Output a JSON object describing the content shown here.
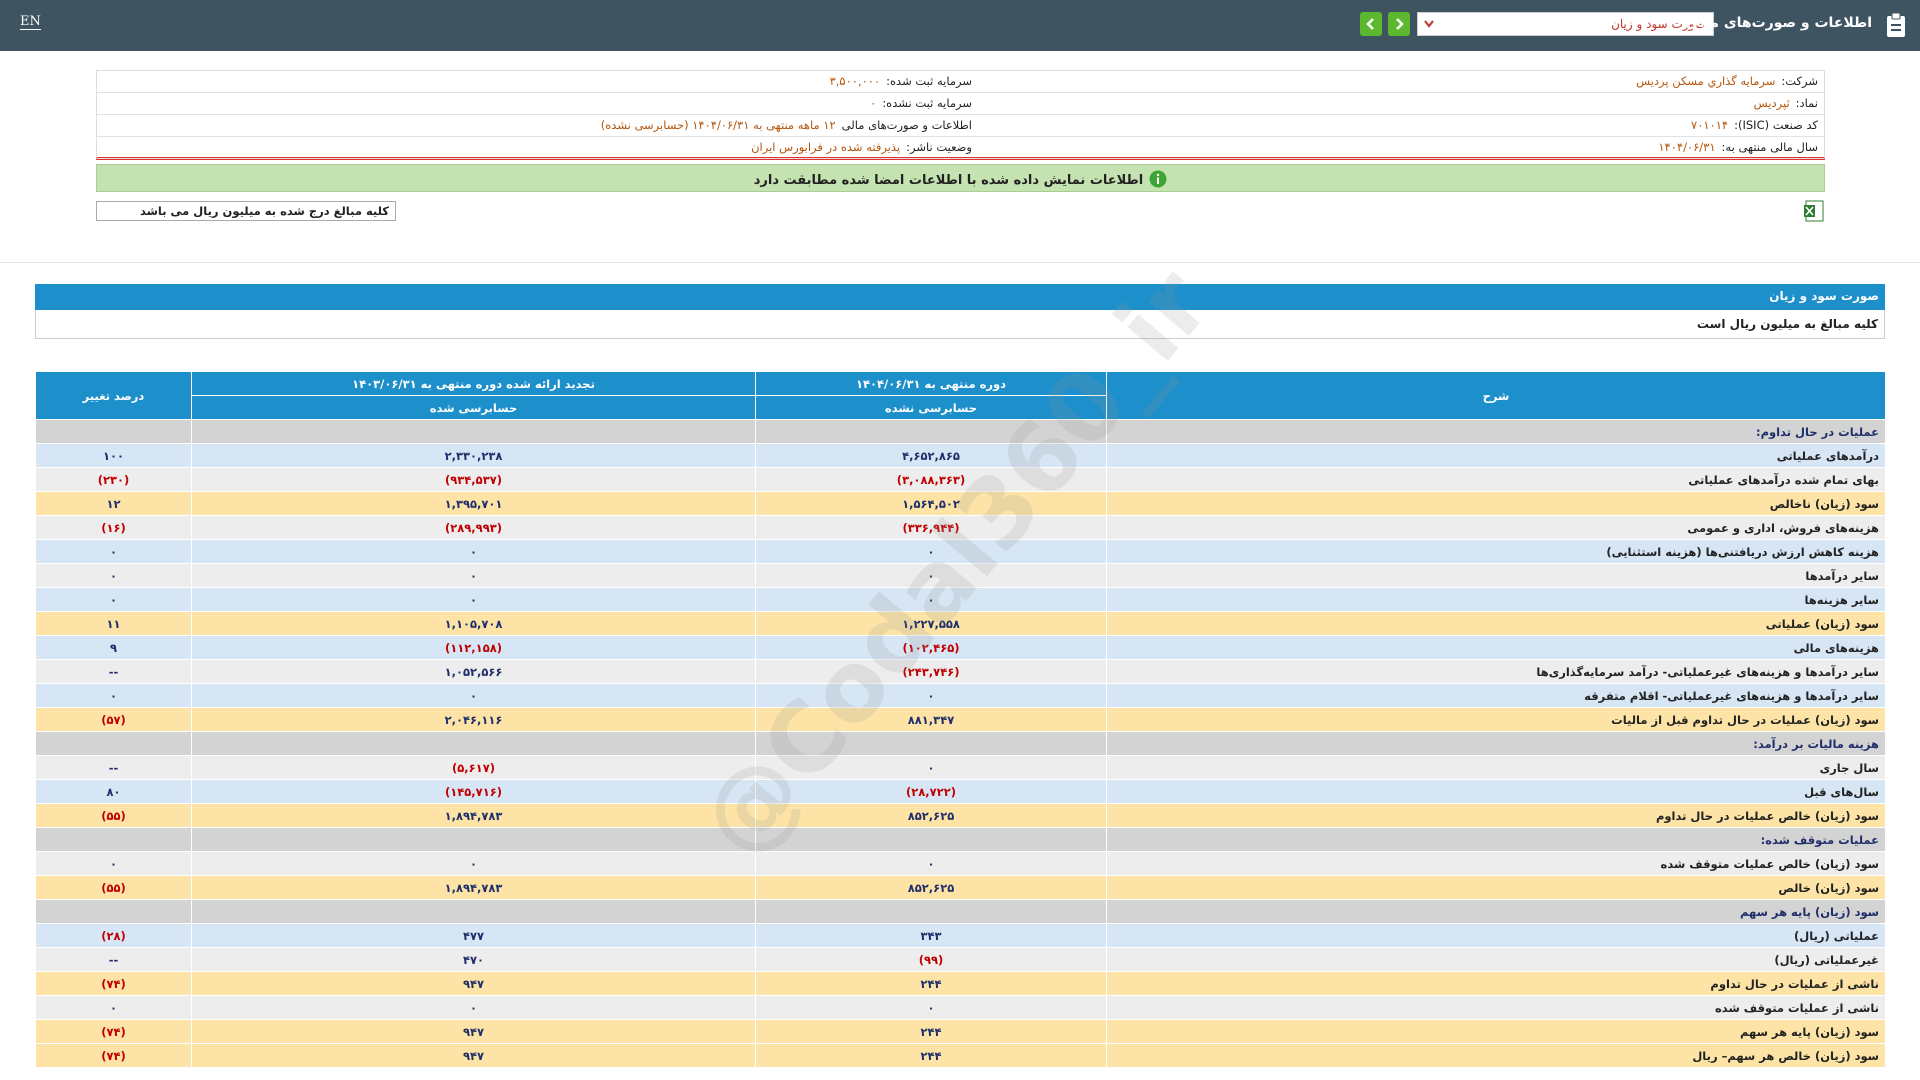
{
  "header": {
    "lang": "EN",
    "title": "اطلاعات و صورت‌های مالی",
    "report_select": "صورت سود و زیان"
  },
  "company_info": [
    {
      "label": "شرکت:",
      "value": "سرمايه گذاري مسکن پرديس"
    },
    {
      "label": "سرمایه ثبت شده:",
      "value": "۳,۵۰۰,۰۰۰"
    },
    {
      "label": "نماد:",
      "value": "ثپردیس"
    },
    {
      "label": "سرمایه ثبت نشده:",
      "value": "۰"
    },
    {
      "label": "کد صنعت (ISIC):",
      "value": "۷۰۱۰۱۴"
    },
    {
      "label": "اطلاعات و صورت‌های مالی",
      "value": "۱۲ ماهه منتهی به ۱۴۰۴/۰۶/۳۱ (حسابرسی نشده)"
    },
    {
      "label": "سال مالی منتهی به:",
      "value": "۱۴۰۴/۰۶/۳۱"
    },
    {
      "label": "وضعیت ناشر:",
      "value": "پذیرفته شده در فرابورس ایران"
    }
  ],
  "verification_notice": "اطلاعات نمایش داده شده با اطلاعات امضا شده مطابقت دارد",
  "units_note": "کلیه مبالغ درج شده به میلیون ریال می باشد",
  "statement": {
    "title": "صورت سود و زیان",
    "units_note": "کلیه مبالغ به میلیون ریال است",
    "columns": [
      "شرح",
      "دوره منتهی به ۱۴۰۴/۰۶/۳۱",
      "تجدید ارائه شده دوره منتهی به ۱۴۰۳/۰۶/۳۱",
      "درصد تغییر"
    ],
    "audit_status": [
      "حسابرسی نشده",
      "حسابرسی شده"
    ],
    "rows": [
      {
        "label": "عملیات در حال تداوم:",
        "color": "#d3d3d3"
      },
      {
        "label": "درآمدهای عملیاتی",
        "values": [
          "۴,۶۵۲,۸۶۵",
          "۲,۳۳۰,۲۳۸",
          "۱۰۰"
        ],
        "color": "#d6e6f5"
      },
      {
        "label": "بهای تمام شده درآمدهای عملیاتی",
        "values": [
          "(۳,۰۸۸,۳۶۳)",
          "(۹۳۴,۵۳۷)",
          "(۲۳۰)"
        ],
        "color": "#ededed"
      },
      {
        "label": "سود (زیان) ناخالص",
        "values": [
          "۱,۵۶۴,۵۰۲",
          "۱,۳۹۵,۷۰۱",
          "۱۲"
        ],
        "color": "#fde4a6"
      },
      {
        "label": "هزینه‌های فروش، اداری و عمومی",
        "values": [
          "(۳۳۶,۹۴۴)",
          "(۲۸۹,۹۹۳)",
          "(۱۶)"
        ],
        "color": "#ededed"
      },
      {
        "label": "هزینه کاهش ارزش دریافتنی‌ها (هزینه استثنایی)",
        "values": [
          "۰",
          "۰",
          "۰"
        ],
        "color": "#d6e6f5"
      },
      {
        "label": "سایر درآمدها",
        "values": [
          "۰",
          "۰",
          "۰"
        ],
        "color": "#ededed"
      },
      {
        "label": "سایر هزینه‌ها",
        "values": [
          "۰",
          "۰",
          "۰"
        ],
        "color": "#d6e6f5"
      },
      {
        "label": "سود (زیان) عملیاتی",
        "values": [
          "۱,۲۲۷,۵۵۸",
          "۱,۱۰۵,۷۰۸",
          "۱۱"
        ],
        "color": "#fde4a6"
      },
      {
        "label": "هزینه‌های مالی",
        "values": [
          "(۱۰۲,۴۶۵)",
          "(۱۱۲,۱۵۸)",
          "۹"
        ],
        "color": "#d6e6f5"
      },
      {
        "label": "سایر درآمدها و هزینه‌های غیرعملیاتی- درآمد سرمایه‌گذاری‌ها",
        "values": [
          "(۲۴۳,۷۴۶)",
          "۱,۰۵۲,۵۶۶",
          "--"
        ],
        "color": "#ededed"
      },
      {
        "label": "سایر درآمدها و هزینه‌های غیرعملیاتی- اقلام متفرقه",
        "values": [
          "۰",
          "۰",
          "۰"
        ],
        "color": "#d6e6f5"
      },
      {
        "label": "سود (زیان) عملیات در حال تداوم قبل از مالیات",
        "values": [
          "۸۸۱,۳۴۷",
          "۲,۰۴۶,۱۱۶",
          "(۵۷)"
        ],
        "color": "#fde4a6"
      },
      {
        "label": "هزینه مالیات بر درآمد:",
        "color": "#d3d3d3"
      },
      {
        "label": "سال جاری",
        "values": [
          "۰",
          "(۵,۶۱۷)",
          "--"
        ],
        "color": "#ededed"
      },
      {
        "label": "سال‌های قبل",
        "values": [
          "(۲۸,۷۲۲)",
          "(۱۴۵,۷۱۶)",
          "۸۰"
        ],
        "color": "#d6e6f5"
      },
      {
        "label": "سود (زیان) خالص عملیات در حال تداوم",
        "values": [
          "۸۵۲,۶۲۵",
          "۱,۸۹۴,۷۸۳",
          "(۵۵)"
        ],
        "color": "#fde4a6"
      },
      {
        "label": "عملیات متوقف شده:",
        "color": "#d3d3d3"
      },
      {
        "label": "سود (زیان) خالص عملیات متوقف شده",
        "values": [
          "۰",
          "۰",
          "۰"
        ],
        "color": "#ededed"
      },
      {
        "label": "سود (زیان) خالص",
        "values": [
          "۸۵۲,۶۲۵",
          "۱,۸۹۴,۷۸۳",
          "(۵۵)"
        ],
        "color": "#fde4a6"
      },
      {
        "label": "سود (زیان) پایه هر سهم",
        "color": "#d3d3d3"
      },
      {
        "label": "عملیاتی (ریال)",
        "values": [
          "۳۴۳",
          "۴۷۷",
          "(۲۸)"
        ],
        "color": "#d6e6f5"
      },
      {
        "label": "غیرعملیاتی (ریال)",
        "values": [
          "(۹۹)",
          "۴۷۰",
          "--"
        ],
        "color": "#ededed"
      },
      {
        "label": "ناشی از عملیات در حال تداوم",
        "values": [
          "۲۴۴",
          "۹۴۷",
          "(۷۴)"
        ],
        "color": "#fde4a6"
      },
      {
        "label": "ناشی از عملیات متوقف شده",
        "values": [
          "۰",
          "۰",
          "۰"
        ],
        "color": "#ededed"
      },
      {
        "label": "سود (زیان) پایه هر سهم",
        "values": [
          "۲۴۴",
          "۹۴۷",
          "(۷۴)"
        ],
        "color": "#fde4a6"
      },
      {
        "label": "سود (زیان) خالص هر سهم– ریال",
        "values": [
          "۲۴۴",
          "۹۴۷",
          "(۷۴)"
        ],
        "color": "#fde4a6"
      }
    ]
  },
  "watermark": "@Codal360_ir"
}
